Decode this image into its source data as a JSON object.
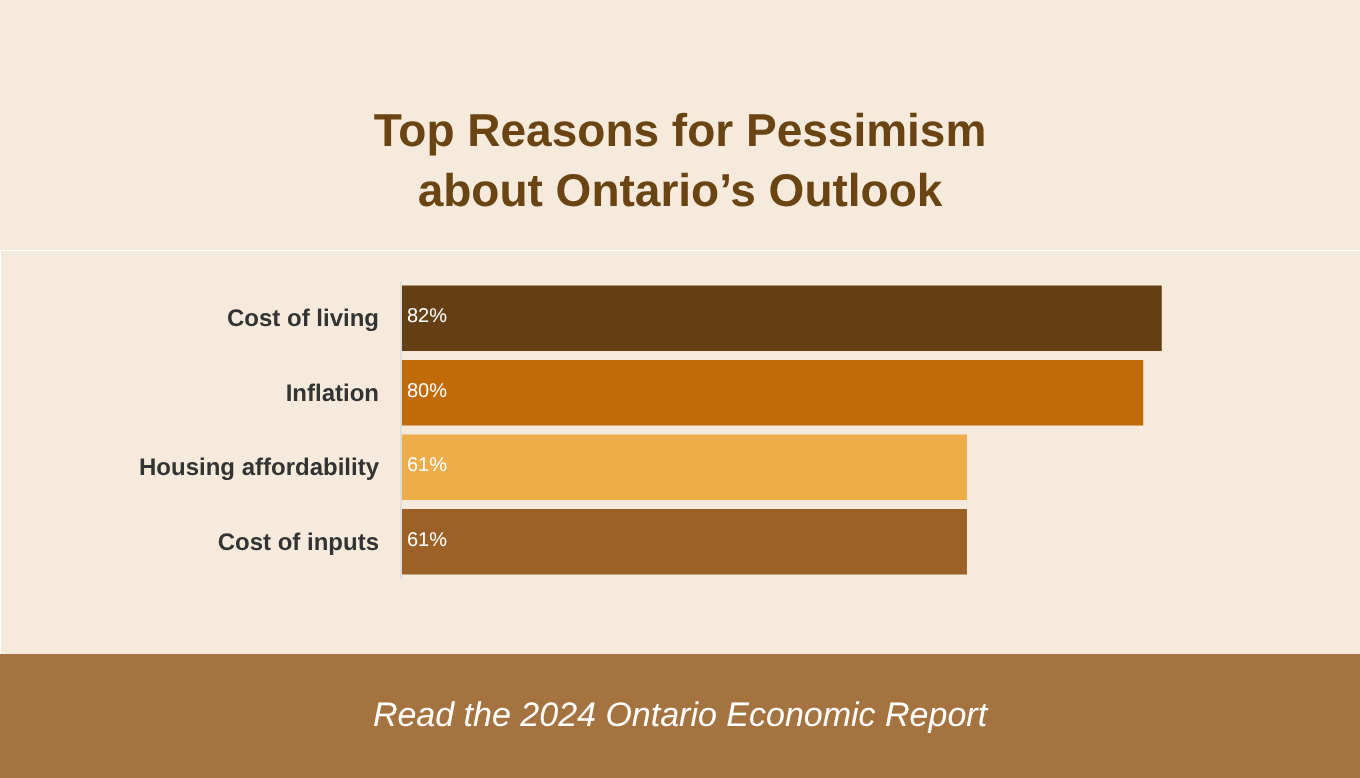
{
  "chart_data": {
    "type": "bar",
    "orientation": "horizontal",
    "title": "Top Reasons for Pessimism about Ontario’s Outlook",
    "categories": [
      "Cost of living",
      "Inflation",
      "Housing affordability",
      "Cost of inputs"
    ],
    "values": [
      82,
      80,
      61,
      61
    ],
    "colors": [
      "#653f13",
      "#c06a08",
      "#efad4a",
      "#9b6127"
    ],
    "value_labels": [
      "82%",
      "80%",
      "61%",
      "61%"
    ],
    "grid": false,
    "annotations": [
      "Read the 2024 Ontario Economic Report"
    ]
  }
}
